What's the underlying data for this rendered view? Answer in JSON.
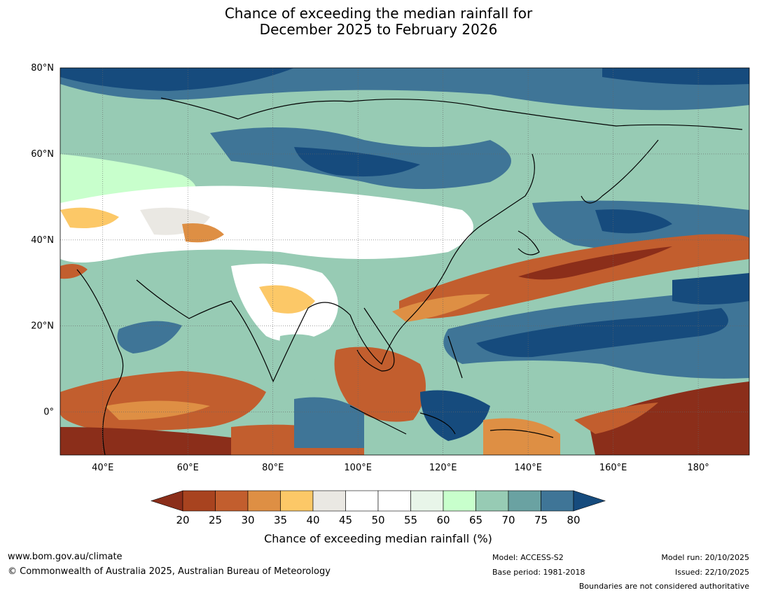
{
  "title": {
    "line1": "Chance of exceeding the median rainfall for",
    "line2": "December 2025 to February 2026"
  },
  "map": {
    "lat_labels": [
      "80°N",
      "60°N",
      "40°N",
      "20°N",
      "0°"
    ],
    "lon_labels": [
      "40°E",
      "60°E",
      "80°E",
      "100°E",
      "120°E",
      "140°E",
      "160°E",
      "180°"
    ],
    "lat_range": [
      -10,
      80
    ],
    "lon_range": [
      30,
      192
    ]
  },
  "colorbar": {
    "label": "Chance of exceeding median rainfall (%)",
    "ticks": [
      "20",
      "25",
      "30",
      "35",
      "40",
      "45",
      "50",
      "55",
      "60",
      "65",
      "70",
      "75",
      "80"
    ],
    "under_color": "#8b2e1a",
    "over_color": "#164b7d",
    "colors": [
      "#a8431f",
      "#c25e2e",
      "#de8f44",
      "#fcc867",
      "#eae8e3",
      "#ffffff",
      "#ffffff",
      "#e8f5e9",
      "#c8ffcc",
      "#97cbb4",
      "#6aa2a2",
      "#3f7597"
    ]
  },
  "footer": {
    "url": "www.bom.gov.au/climate",
    "copyright": "© Commonwealth of Australia 2025, Australian Bureau of Meteorology",
    "model": "Model: ACCESS-S2",
    "base_period": "Base period: 1981-2018",
    "model_run": "Model run: 20/10/2025",
    "issued": "Issued: 22/10/2025",
    "disclaimer": "Boundaries are not considered authoritative"
  }
}
